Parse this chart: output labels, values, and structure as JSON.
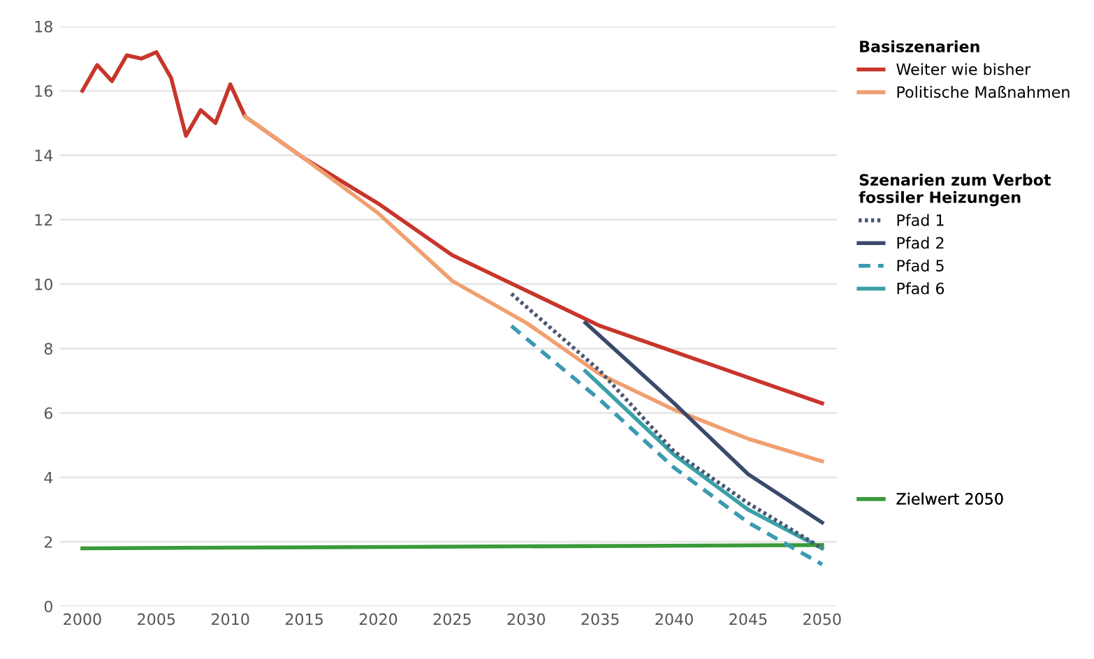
{
  "chart_data": {
    "type": "line",
    "annotations": [
      "Basiszenarien",
      "Szenarien zum Verbot\nfossiler Heizungen"
    ],
    "series": [
      {
        "name": "Weiter wie bisher",
        "color": "#c8352b",
        "line_style": "solid",
        "x": [
          2000,
          2001,
          2002,
          2003,
          2004,
          2005,
          2006,
          2007,
          2008,
          2009,
          2010,
          2011,
          2015,
          2020,
          2025,
          2030,
          2035,
          2040,
          2045,
          2050
        ],
        "values": [
          16.0,
          16.8,
          16.3,
          17.1,
          17.0,
          17.2,
          16.4,
          14.6,
          15.4,
          15.0,
          16.2,
          15.2,
          13.9,
          12.5,
          10.9,
          9.8,
          8.7,
          7.9,
          7.1,
          6.3
        ]
      },
      {
        "name": "Politische Maßnahmen",
        "color": "#f0a070",
        "line_style": "solid",
        "x": [
          2011,
          2015,
          2020,
          2025,
          2030,
          2035,
          2040,
          2045,
          2050
        ],
        "values": [
          15.2,
          13.9,
          12.2,
          10.1,
          8.8,
          7.2,
          6.1,
          5.2,
          4.5
        ]
      },
      {
        "name": "Pfad 1",
        "color": "#4a5670",
        "line_style": "dotted",
        "x": [
          2029,
          2035,
          2040,
          2045,
          2050
        ],
        "values": [
          9.7,
          7.3,
          4.8,
          3.2,
          1.8
        ]
      },
      {
        "name": "Pfad 2",
        "color": "#3a4a6a",
        "line_style": "solid",
        "x": [
          2034,
          2040,
          2045,
          2050
        ],
        "values": [
          8.8,
          6.3,
          4.1,
          2.6
        ]
      },
      {
        "name": "Pfad 5",
        "color": "#3a9ab0",
        "line_style": "dashed",
        "x": [
          2029,
          2035,
          2040,
          2045,
          2050
        ],
        "values": [
          8.7,
          6.4,
          4.3,
          2.6,
          1.3
        ]
      },
      {
        "name": "Pfad 6",
        "color": "#3aa0a8",
        "line_style": "solid",
        "x": [
          2034,
          2040,
          2045,
          2050
        ],
        "values": [
          7.3,
          4.7,
          3.0,
          1.8
        ]
      },
      {
        "name": "Zielwert 2050",
        "color": "#3a9a3a",
        "line_style": "solid",
        "x": [
          2000,
          2050
        ],
        "values": [
          1.8,
          1.9
        ]
      }
    ],
    "xlim": [
      1998.5,
      2051
    ],
    "ylim": [
      0,
      18
    ],
    "xticks": [
      2000,
      2005,
      2010,
      2015,
      2020,
      2025,
      2030,
      2035,
      2040,
      2045,
      2050
    ],
    "yticks": [
      0,
      2,
      4,
      6,
      8,
      10,
      12,
      14,
      16,
      18
    ],
    "grid": "y",
    "legend": "right"
  }
}
